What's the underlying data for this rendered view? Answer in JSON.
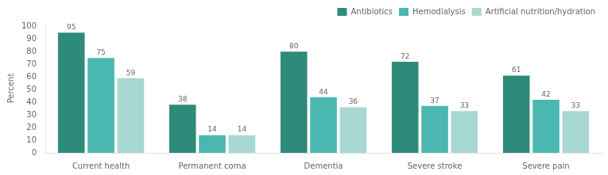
{
  "chart_data": {
    "type": "bar",
    "categories": [
      "Current health",
      "Permanent coma",
      "Dementia",
      "Severe stroke",
      "Severe pain"
    ],
    "series": [
      {
        "name": "Antibiotics",
        "color": "#2e8b7a",
        "values": [
          95,
          38,
          80,
          72,
          61
        ]
      },
      {
        "name": "Hemodialysis",
        "color": "#4ab8b0",
        "values": [
          75,
          14,
          44,
          37,
          42
        ]
      },
      {
        "name": "Artificial nutrition/hydration",
        "color": "#a8d8d2",
        "values": [
          59,
          14,
          36,
          33,
          33
        ]
      }
    ],
    "y_label": "Percent",
    "ylim": [
      0,
      102
    ],
    "yticks": [
      0,
      10,
      20,
      30,
      40,
      50,
      60,
      70,
      80,
      90,
      100
    ],
    "grid": false,
    "legend": "upper right",
    "data_labels": true
  }
}
